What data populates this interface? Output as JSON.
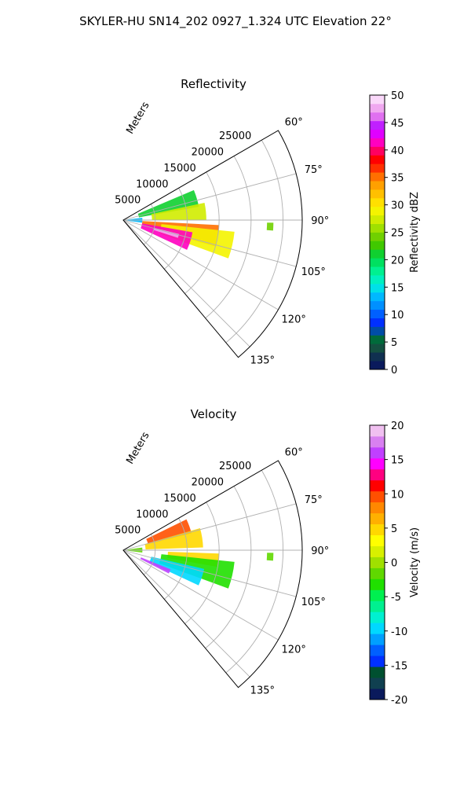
{
  "figure_title": "SKYLER-HU  SN14_202  0927_1.324 UTC Elevation 22°",
  "chart_data": [
    {
      "type": "polar-sector",
      "title": "Reflectivity",
      "range_label": "Meters",
      "range_ticks": [
        5000,
        10000,
        15000,
        20000,
        25000
      ],
      "range_max": 28000,
      "azimuth_range": [
        60,
        140
      ],
      "azimuth_gridlines": [
        60,
        75,
        90,
        105,
        120,
        135
      ],
      "azimuth_tick_labels": [
        "60°",
        "75°",
        "90°",
        "105°",
        "120°",
        "135°"
      ],
      "colorbar": {
        "label": "Reflectivity dBZ",
        "min": 0,
        "max": 50,
        "ticks": [
          0,
          5,
          10,
          15,
          20,
          25,
          30,
          35,
          40,
          45,
          50
        ],
        "colors": [
          "#0a1a5c",
          "#103050",
          "#145040",
          "#006a3a",
          "#004da6",
          "#0030ff",
          "#0060ff",
          "#0090ff",
          "#00b8ff",
          "#00e0e8",
          "#00f0c0",
          "#00f090",
          "#00e060",
          "#10d030",
          "#40c800",
          "#70d000",
          "#a0e000",
          "#d0ec00",
          "#f4f400",
          "#ffe000",
          "#ffc000",
          "#ffa000",
          "#ff7000",
          "#ff3000",
          "#ff0000",
          "#ff0060",
          "#ff00c0",
          "#e000ff",
          "#c020ff",
          "#e070f0",
          "#f0a8f0",
          "#fad8fa"
        ]
      },
      "echo_regions": [
        {
          "level": 13,
          "az": [
            67,
            80
          ],
          "r": [
            2500,
            12000
          ]
        },
        {
          "level": 17,
          "az": [
            78,
            90
          ],
          "r": [
            4500,
            13000
          ]
        },
        {
          "level": 8,
          "az": [
            83,
            98
          ],
          "r": [
            300,
            3000
          ]
        },
        {
          "level": 22,
          "az": [
            93,
            106
          ],
          "r": [
            3000,
            15000
          ]
        },
        {
          "level": 18,
          "az": [
            96,
            110
          ],
          "r": [
            6000,
            17500
          ]
        },
        {
          "level": 26,
          "az": [
            100,
            115
          ],
          "r": [
            3000,
            11000
          ]
        },
        {
          "level": 30,
          "az": [
            104,
            108
          ],
          "r": [
            5000,
            9000
          ]
        },
        {
          "level": 15,
          "az": [
            91,
            94
          ],
          "r": [
            22500,
            23500
          ]
        }
      ]
    },
    {
      "type": "polar-sector",
      "title": "Velocity",
      "range_label": "Meters",
      "range_ticks": [
        5000,
        10000,
        15000,
        20000,
        25000
      ],
      "range_max": 28000,
      "azimuth_range": [
        60,
        140
      ],
      "azimuth_gridlines": [
        60,
        75,
        90,
        105,
        120,
        135
      ],
      "azimuth_tick_labels": [
        "60°",
        "75°",
        "90°",
        "105°",
        "120°",
        "135°"
      ],
      "colorbar": {
        "label": "Velocity (m/s)",
        "min": -20,
        "max": 20,
        "ticks": [
          -20,
          -15,
          -10,
          -5,
          0,
          5,
          10,
          15,
          20
        ],
        "colors": [
          "#0a1a5c",
          "#104050",
          "#005030",
          "#0030ff",
          "#0060ff",
          "#00a0ff",
          "#00d8ff",
          "#00f0d0",
          "#00f090",
          "#00f050",
          "#20e000",
          "#60d800",
          "#a0e000",
          "#d8f000",
          "#ffff00",
          "#ffd800",
          "#ffb000",
          "#ff8800",
          "#ff5000",
          "#ff0000",
          "#ff0080",
          "#ff00ff",
          "#c040ff",
          "#d880f0",
          "#f0c0f0"
        ]
      },
      "echo_regions": [
        {
          "level": 18,
          "az": [
            64,
            76
          ],
          "r": [
            4000,
            11000
          ]
        },
        {
          "level": 15,
          "az": [
            74,
            88
          ],
          "r": [
            3500,
            12500
          ]
        },
        {
          "level": 11,
          "az": [
            82,
            97
          ],
          "r": [
            300,
            3000
          ]
        },
        {
          "level": 15,
          "az": [
            92,
            100
          ],
          "r": [
            7000,
            15000
          ]
        },
        {
          "level": 10,
          "az": [
            96,
            110
          ],
          "r": [
            6000,
            17500
          ]
        },
        {
          "level": 6,
          "az": [
            103,
            115
          ],
          "r": [
            4500,
            13000
          ]
        },
        {
          "level": 22,
          "az": [
            112,
            117
          ],
          "r": [
            3000,
            8000
          ]
        },
        {
          "level": 11,
          "az": [
            91,
            94
          ],
          "r": [
            22500,
            23500
          ]
        }
      ]
    }
  ]
}
